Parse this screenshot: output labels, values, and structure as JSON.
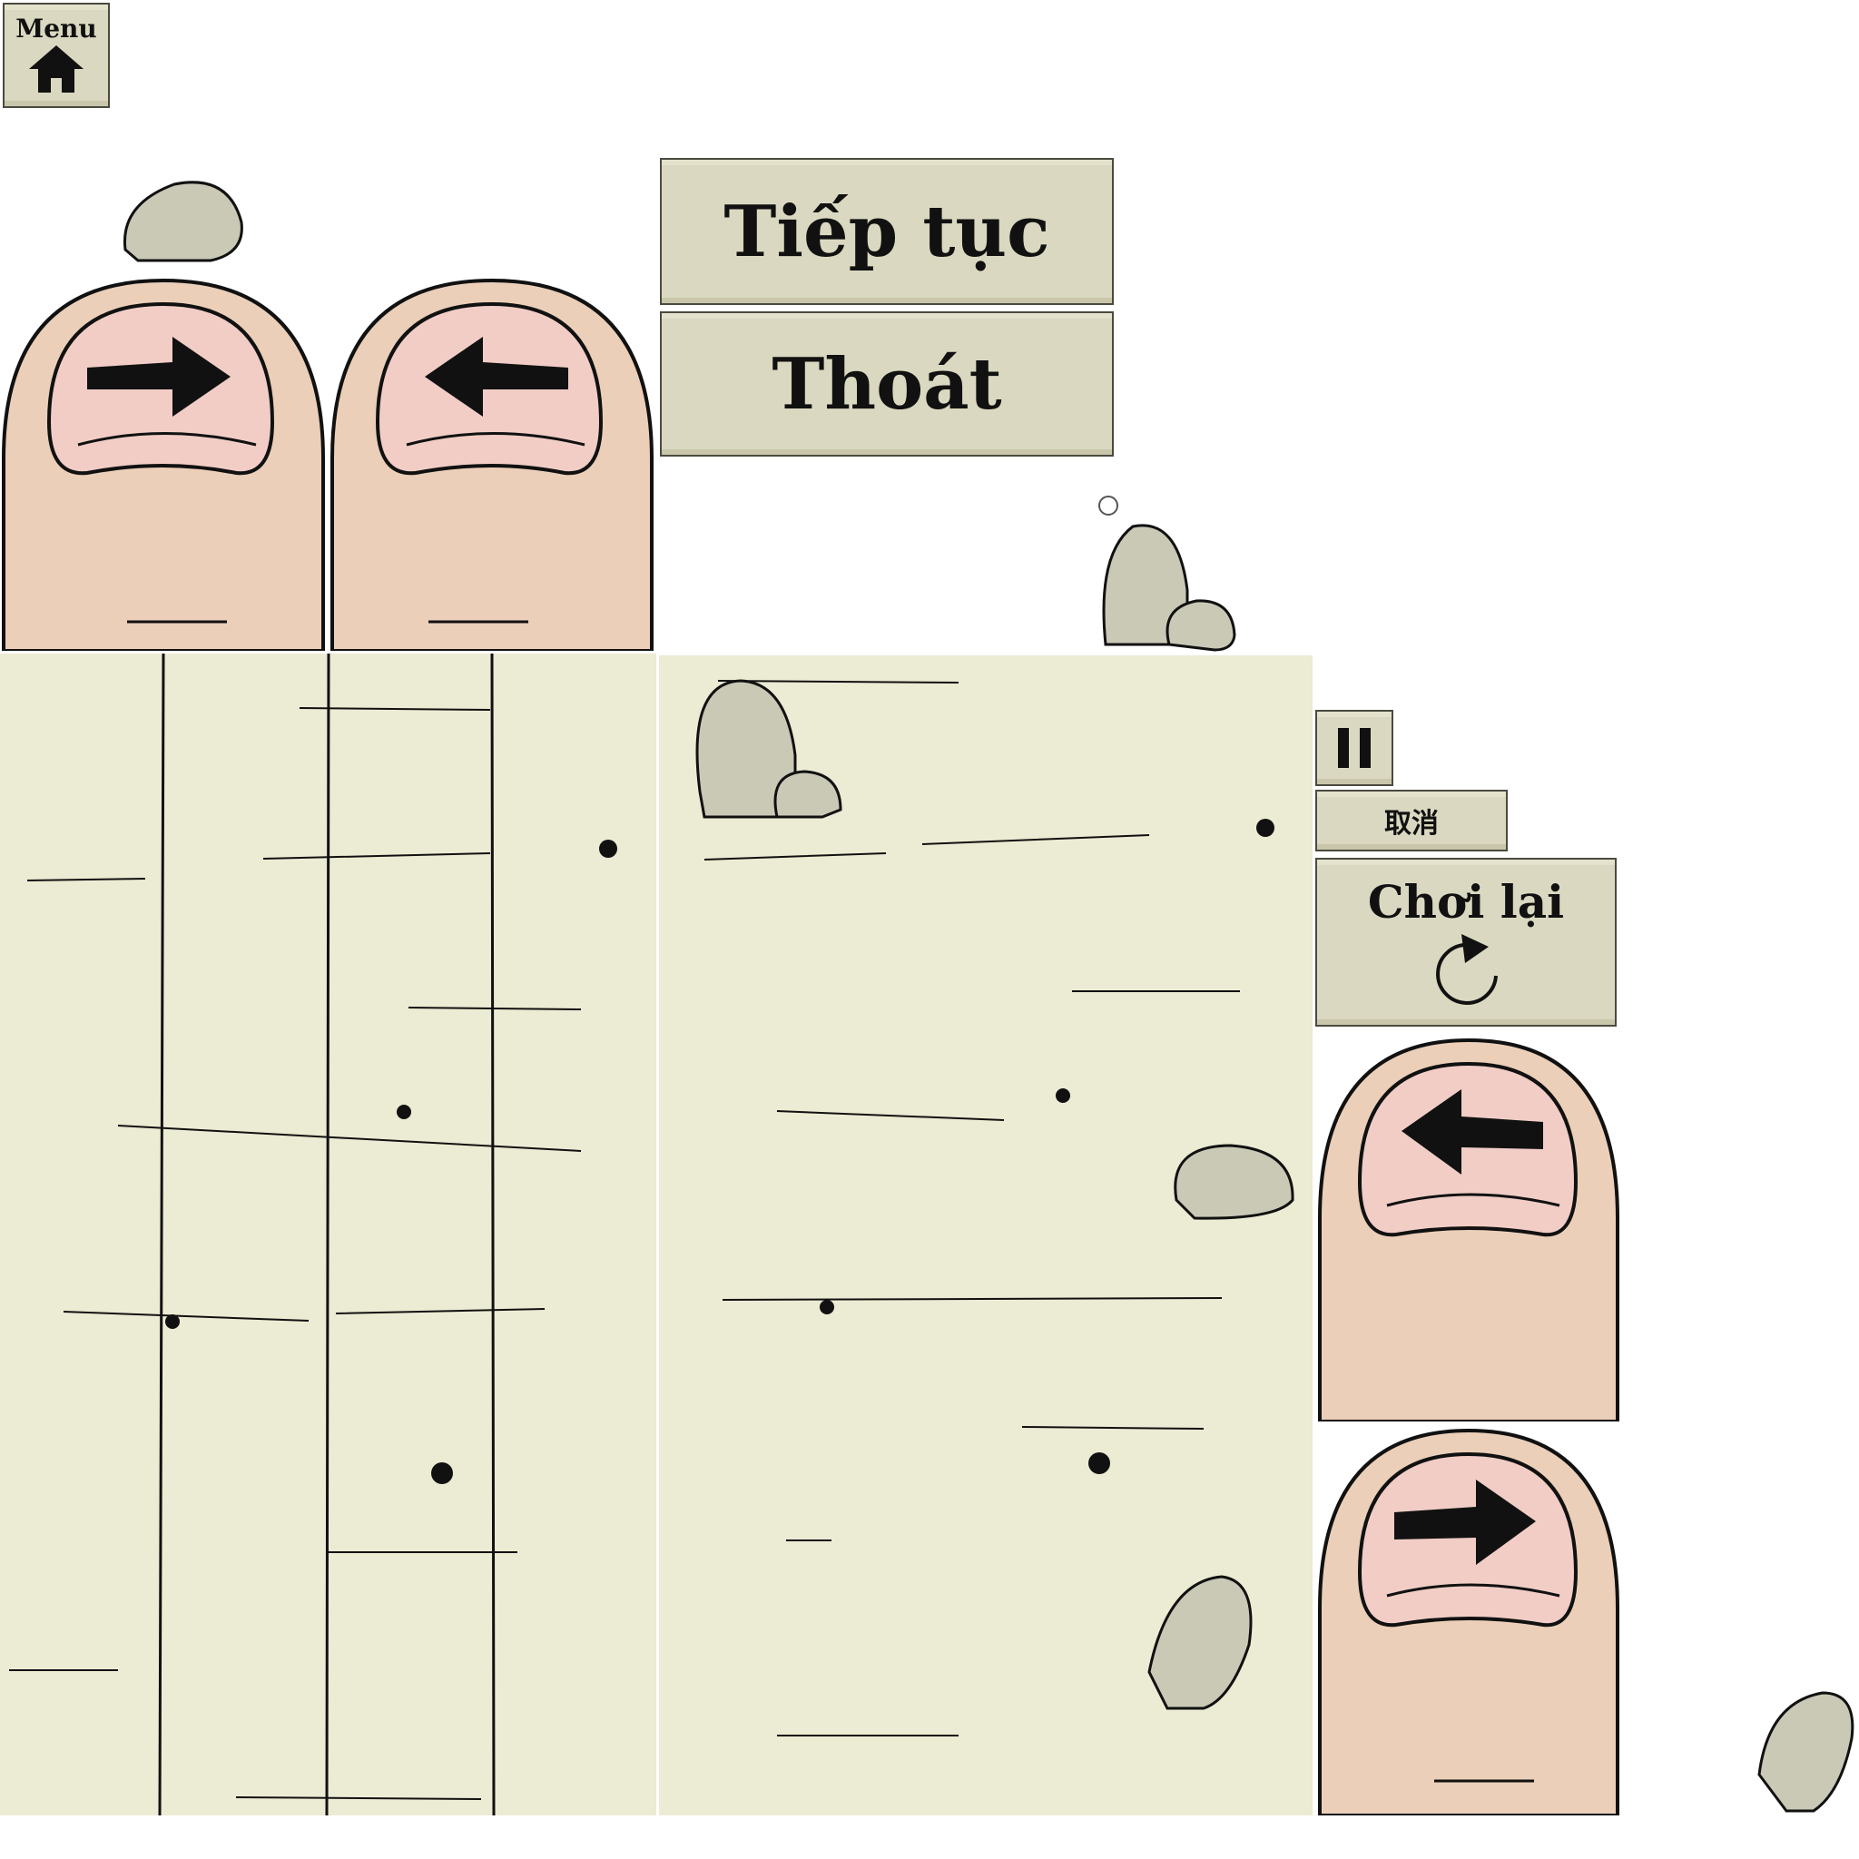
{
  "menu_button": {
    "label": "Menu",
    "icon": "home-icon"
  },
  "pause_menu": {
    "continue_label": "Tiếp tục",
    "exit_label": "Thoát"
  },
  "hud": {
    "pause_icon": "pause-icon",
    "cancel_label": "取消",
    "replay_label": "Chơi lại",
    "replay_icon": "restart-icon"
  },
  "colors": {
    "ground": "#ecebd3",
    "button": "#dad8c0",
    "skin": "#ebcfb9",
    "nail": "#f1cdc6",
    "rock": "#c9c9b6"
  }
}
